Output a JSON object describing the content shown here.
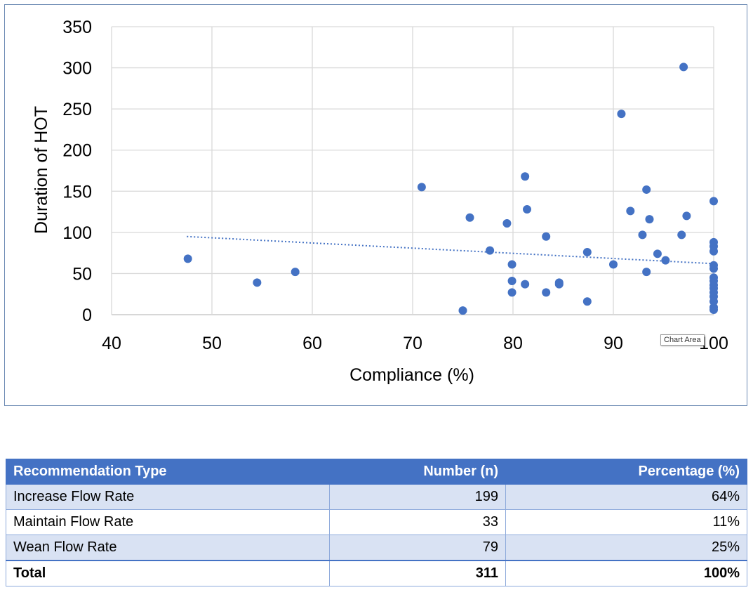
{
  "chart_data": {
    "type": "scatter",
    "xlabel": "Compliance (%)",
    "ylabel": "Duration of HOT",
    "xlim": [
      40,
      100
    ],
    "ylim": [
      0,
      350
    ],
    "x_ticks": [
      40,
      50,
      60,
      70,
      80,
      90,
      100
    ],
    "y_ticks": [
      0,
      50,
      100,
      150,
      200,
      250,
      300,
      350
    ],
    "grid": true,
    "legend": "none",
    "marker_color": "#4472c4",
    "trendline": {
      "type": "linear",
      "style": "dotted",
      "color": "#4472c4",
      "x": [
        47.5,
        100
      ],
      "y": [
        95,
        62
      ]
    },
    "points": [
      [
        47.6,
        68
      ],
      [
        54.5,
        39
      ],
      [
        58.3,
        52
      ],
      [
        70.9,
        155
      ],
      [
        75.0,
        5
      ],
      [
        75.7,
        118
      ],
      [
        77.7,
        78
      ],
      [
        79.4,
        111
      ],
      [
        79.9,
        61
      ],
      [
        79.9,
        41
      ],
      [
        79.9,
        27
      ],
      [
        81.2,
        168
      ],
      [
        81.2,
        37
      ],
      [
        81.4,
        128
      ],
      [
        83.3,
        95
      ],
      [
        83.3,
        27
      ],
      [
        84.6,
        39
      ],
      [
        84.6,
        37
      ],
      [
        87.4,
        76
      ],
      [
        87.4,
        16
      ],
      [
        90.0,
        61
      ],
      [
        90.8,
        244
      ],
      [
        91.7,
        126
      ],
      [
        92.9,
        97
      ],
      [
        93.3,
        152
      ],
      [
        93.3,
        52
      ],
      [
        93.6,
        116
      ],
      [
        94.4,
        74
      ],
      [
        95.2,
        66
      ],
      [
        96.8,
        97
      ],
      [
        97.0,
        301
      ],
      [
        97.3,
        120
      ],
      [
        100,
        138
      ],
      [
        100,
        88
      ],
      [
        100,
        83
      ],
      [
        100,
        77
      ],
      [
        100,
        60
      ],
      [
        100,
        56
      ],
      [
        100,
        45
      ],
      [
        100,
        41
      ],
      [
        100,
        36
      ],
      [
        100,
        32
      ],
      [
        100,
        27
      ],
      [
        100,
        22
      ],
      [
        100,
        16
      ],
      [
        100,
        9
      ],
      [
        100,
        6
      ]
    ]
  },
  "tooltip": "Chart Area",
  "table": {
    "headers": [
      "Recommendation Type",
      "Number (n)",
      "Percentage (%)"
    ],
    "rows": [
      [
        "Increase Flow Rate",
        "199",
        "64%"
      ],
      [
        "Maintain Flow Rate",
        "33",
        "11%"
      ],
      [
        "Wean Flow Rate",
        "79",
        "25%"
      ]
    ],
    "total": [
      "Total",
      "311",
      "100%"
    ]
  }
}
